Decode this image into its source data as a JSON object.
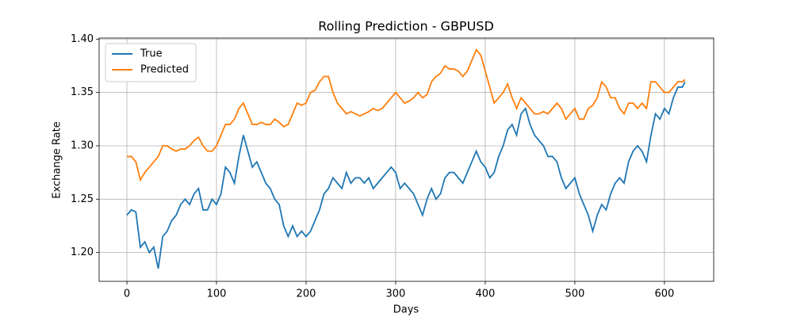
{
  "chart_data": {
    "type": "line",
    "title": "Rolling Prediction - GBPUSD",
    "x_label": "Days",
    "y_label": "Exchange Rate",
    "x": [
      0,
      5,
      10,
      15,
      20,
      25,
      30,
      35,
      40,
      45,
      50,
      55,
      60,
      65,
      70,
      75,
      80,
      85,
      90,
      95,
      100,
      105,
      110,
      115,
      120,
      125,
      130,
      135,
      140,
      145,
      150,
      155,
      160,
      165,
      170,
      175,
      180,
      185,
      190,
      195,
      200,
      205,
      210,
      215,
      220,
      225,
      230,
      235,
      240,
      245,
      250,
      255,
      260,
      265,
      270,
      275,
      280,
      285,
      290,
      295,
      300,
      305,
      310,
      315,
      320,
      325,
      330,
      335,
      340,
      345,
      350,
      355,
      360,
      365,
      370,
      375,
      380,
      385,
      390,
      395,
      400,
      405,
      410,
      415,
      420,
      425,
      430,
      435,
      440,
      445,
      450,
      455,
      460,
      465,
      470,
      475,
      480,
      485,
      490,
      495,
      500,
      505,
      510,
      515,
      520,
      525,
      530,
      535,
      540,
      545,
      550,
      555,
      560,
      565,
      570,
      575,
      580,
      585,
      590,
      595,
      600,
      605,
      610,
      615,
      620,
      623
    ],
    "series": [
      {
        "name": "True",
        "color": "#1f77b4",
        "values": [
          1.235,
          1.24,
          1.238,
          1.205,
          1.21,
          1.2,
          1.205,
          1.185,
          1.215,
          1.22,
          1.23,
          1.235,
          1.245,
          1.25,
          1.245,
          1.255,
          1.26,
          1.24,
          1.24,
          1.25,
          1.245,
          1.255,
          1.28,
          1.275,
          1.265,
          1.29,
          1.31,
          1.295,
          1.28,
          1.285,
          1.275,
          1.265,
          1.26,
          1.25,
          1.245,
          1.225,
          1.215,
          1.225,
          1.215,
          1.22,
          1.215,
          1.22,
          1.23,
          1.24,
          1.255,
          1.26,
          1.27,
          1.265,
          1.26,
          1.275,
          1.265,
          1.27,
          1.27,
          1.265,
          1.27,
          1.26,
          1.265,
          1.27,
          1.275,
          1.28,
          1.275,
          1.26,
          1.265,
          1.26,
          1.255,
          1.245,
          1.235,
          1.25,
          1.26,
          1.25,
          1.255,
          1.27,
          1.275,
          1.275,
          1.27,
          1.265,
          1.275,
          1.285,
          1.295,
          1.285,
          1.28,
          1.27,
          1.275,
          1.29,
          1.3,
          1.315,
          1.32,
          1.31,
          1.33,
          1.335,
          1.32,
          1.31,
          1.305,
          1.3,
          1.29,
          1.29,
          1.285,
          1.27,
          1.26,
          1.265,
          1.27,
          1.255,
          1.245,
          1.235,
          1.22,
          1.235,
          1.245,
          1.24,
          1.255,
          1.265,
          1.27,
          1.265,
          1.285,
          1.295,
          1.3,
          1.295,
          1.285,
          1.31,
          1.33,
          1.325,
          1.335,
          1.33,
          1.345,
          1.355,
          1.355,
          1.36
        ]
      },
      {
        "name": "Predicted",
        "color": "#ff7f0e",
        "values": [
          1.29,
          1.29,
          1.285,
          1.268,
          1.275,
          1.28,
          1.285,
          1.29,
          1.3,
          1.3,
          1.297,
          1.295,
          1.297,
          1.297,
          1.3,
          1.305,
          1.308,
          1.3,
          1.295,
          1.295,
          1.3,
          1.31,
          1.32,
          1.32,
          1.325,
          1.335,
          1.34,
          1.33,
          1.32,
          1.32,
          1.322,
          1.32,
          1.32,
          1.325,
          1.322,
          1.318,
          1.32,
          1.33,
          1.34,
          1.338,
          1.34,
          1.35,
          1.352,
          1.36,
          1.365,
          1.365,
          1.35,
          1.34,
          1.335,
          1.33,
          1.332,
          1.33,
          1.328,
          1.33,
          1.332,
          1.335,
          1.333,
          1.335,
          1.34,
          1.345,
          1.35,
          1.345,
          1.34,
          1.342,
          1.345,
          1.35,
          1.345,
          1.348,
          1.36,
          1.365,
          1.368,
          1.375,
          1.372,
          1.372,
          1.37,
          1.365,
          1.37,
          1.38,
          1.39,
          1.385,
          1.37,
          1.355,
          1.34,
          1.345,
          1.35,
          1.358,
          1.345,
          1.335,
          1.345,
          1.34,
          1.335,
          1.33,
          1.33,
          1.332,
          1.33,
          1.335,
          1.34,
          1.335,
          1.325,
          1.33,
          1.335,
          1.325,
          1.325,
          1.335,
          1.338,
          1.345,
          1.36,
          1.355,
          1.345,
          1.345,
          1.335,
          1.33,
          1.34,
          1.34,
          1.335,
          1.34,
          1.335,
          1.36,
          1.36,
          1.355,
          1.35,
          1.35,
          1.355,
          1.36,
          1.36,
          1.362
        ]
      }
    ],
    "xlim": [
      -31,
      655
    ],
    "ylim": [
      1.173,
      1.401
    ],
    "xticks": [
      0,
      100,
      200,
      300,
      400,
      500,
      600
    ],
    "yticks": [
      {
        "value": 1.2,
        "label": "1.20"
      },
      1.25,
      {
        "value": 1.3,
        "label": "1.30"
      },
      1.35,
      {
        "value": 1.4,
        "label": "1.40"
      }
    ],
    "grid": true,
    "legend": "upper left"
  }
}
